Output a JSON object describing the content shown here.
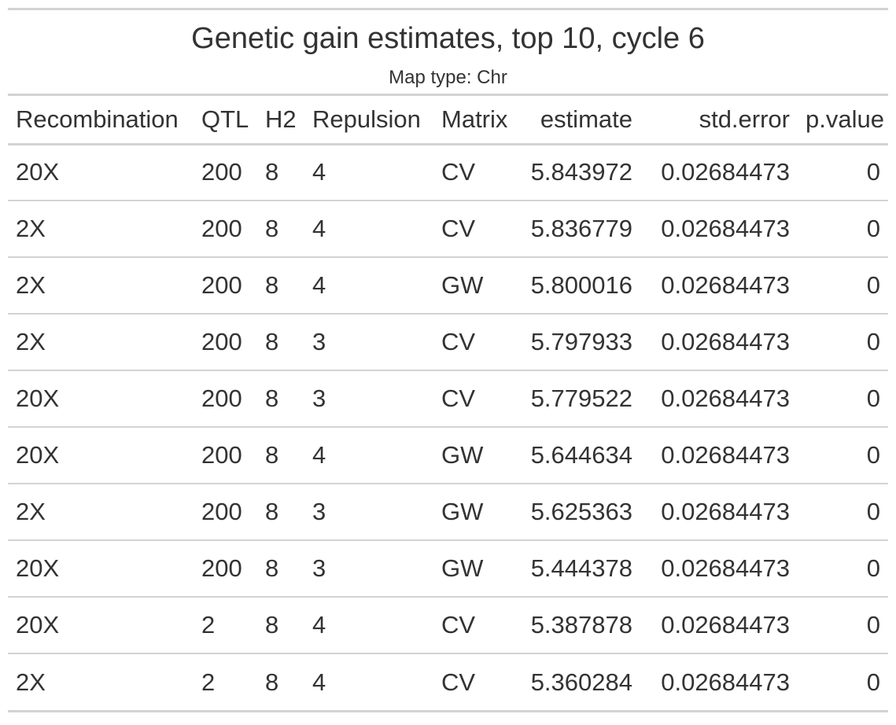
{
  "title": "Genetic gain estimates, top 10, cycle 6",
  "subtitle": "Map type: Chr",
  "chart_data": {
    "type": "table",
    "title": "Genetic gain estimates, top 10, cycle 6",
    "subtitle": "Map type: Chr",
    "columns": [
      {
        "label": "Recombination",
        "align": "left"
      },
      {
        "label": "QTL",
        "align": "left"
      },
      {
        "label": "H2",
        "align": "left"
      },
      {
        "label": "Repulsion",
        "align": "left"
      },
      {
        "label": "Matrix",
        "align": "left"
      },
      {
        "label": "estimate",
        "align": "right"
      },
      {
        "label": "std.error",
        "align": "right"
      },
      {
        "label": "p.value",
        "align": "right"
      }
    ],
    "rows": [
      [
        "20X",
        "200",
        "8",
        "4",
        "CV",
        "5.843972",
        "0.02684473",
        "0"
      ],
      [
        "2X",
        "200",
        "8",
        "4",
        "CV",
        "5.836779",
        "0.02684473",
        "0"
      ],
      [
        "2X",
        "200",
        "8",
        "4",
        "GW",
        "5.800016",
        "0.02684473",
        "0"
      ],
      [
        "2X",
        "200",
        "8",
        "3",
        "CV",
        "5.797933",
        "0.02684473",
        "0"
      ],
      [
        "20X",
        "200",
        "8",
        "3",
        "CV",
        "5.779522",
        "0.02684473",
        "0"
      ],
      [
        "20X",
        "200",
        "8",
        "4",
        "GW",
        "5.644634",
        "0.02684473",
        "0"
      ],
      [
        "2X",
        "200",
        "8",
        "3",
        "GW",
        "5.625363",
        "0.02684473",
        "0"
      ],
      [
        "20X",
        "200",
        "8",
        "3",
        "GW",
        "5.444378",
        "0.02684473",
        "0"
      ],
      [
        "20X",
        "2",
        "8",
        "4",
        "CV",
        "5.387878",
        "0.02684473",
        "0"
      ],
      [
        "2X",
        "2",
        "8",
        "4",
        "CV",
        "5.360284",
        "0.02684473",
        "0"
      ]
    ]
  },
  "colors": {
    "text": "#333333",
    "rule": "#d3d3d3",
    "background": "#ffffff"
  }
}
